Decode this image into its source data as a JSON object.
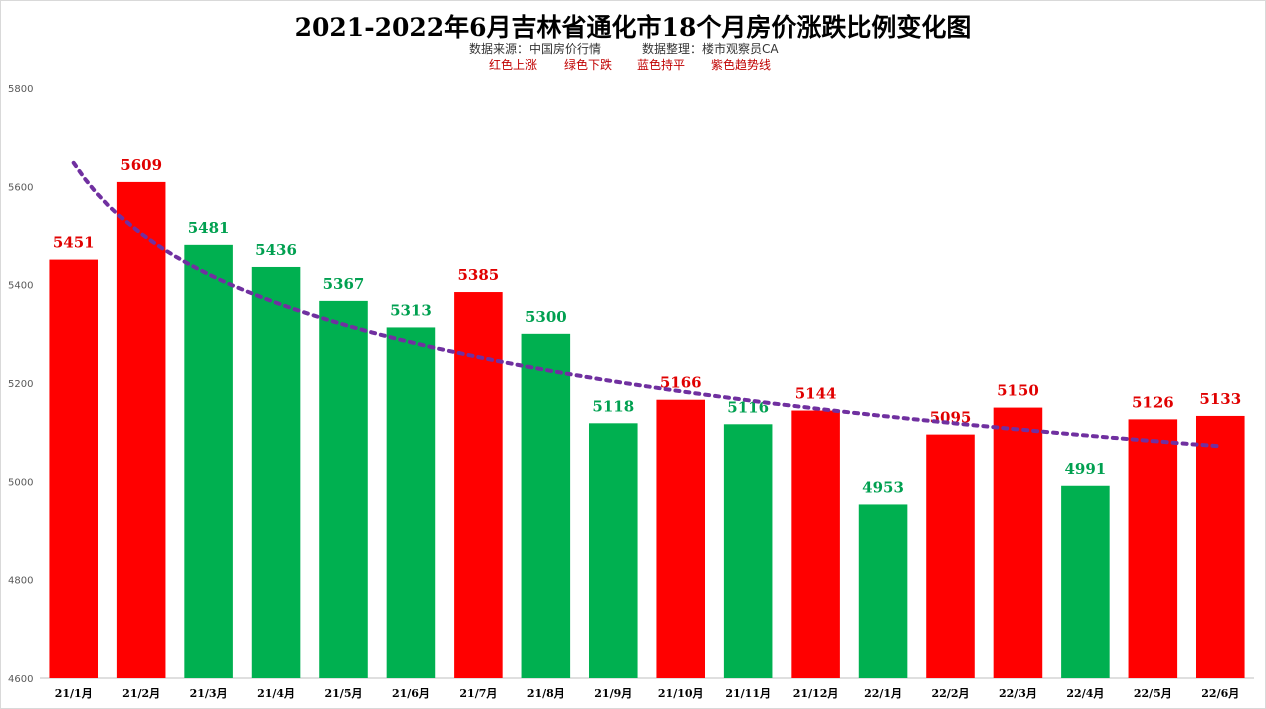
{
  "header": {
    "title": "2021-2022年6月吉林省通化市18个月房价涨跌比例变化图",
    "source_text": "数据来源：中国房价行情",
    "organizer_text": "数据整理：楼市观察员CA",
    "legend_red": "红色上涨",
    "legend_green": "绿色下跌",
    "legend_blue": "蓝色持平",
    "legend_purple": "紫色趋势线"
  },
  "chart_data": {
    "type": "bar",
    "title": "2021-2022年6月吉林省通化市18个月房价涨跌比例变化图",
    "categories": [
      "21/1月",
      "21/2月",
      "21/3月",
      "21/4月",
      "21/5月",
      "21/6月",
      "21/7月",
      "21/8月",
      "21/9月",
      "21/10月",
      "21/11月",
      "21/12月",
      "22/1月",
      "22/2月",
      "22/3月",
      "22/4月",
      "22/5月",
      "22/6月"
    ],
    "values": [
      5451,
      5609,
      5481,
      5436,
      5367,
      5313,
      5385,
      5300,
      5118,
      5166,
      5116,
      5144,
      4953,
      5095,
      5150,
      4991,
      5126,
      5133
    ],
    "direction": [
      "up",
      "up",
      "down",
      "down",
      "down",
      "down",
      "up",
      "down",
      "down",
      "up",
      "down",
      "up",
      "down",
      "up",
      "up",
      "down",
      "up",
      "up"
    ],
    "ylim": [
      4600,
      5800
    ],
    "yticks": [
      4600,
      4800,
      5000,
      5200,
      5400,
      5600,
      5800
    ],
    "grid": false,
    "trendline": {
      "type": "power",
      "color": "#7030a0",
      "style": "dotted"
    },
    "colors": {
      "up": "#ff0000",
      "down": "#00b050",
      "label_up": "#e00000",
      "label_down": "#00a050",
      "trend": "#7030a0"
    }
  }
}
